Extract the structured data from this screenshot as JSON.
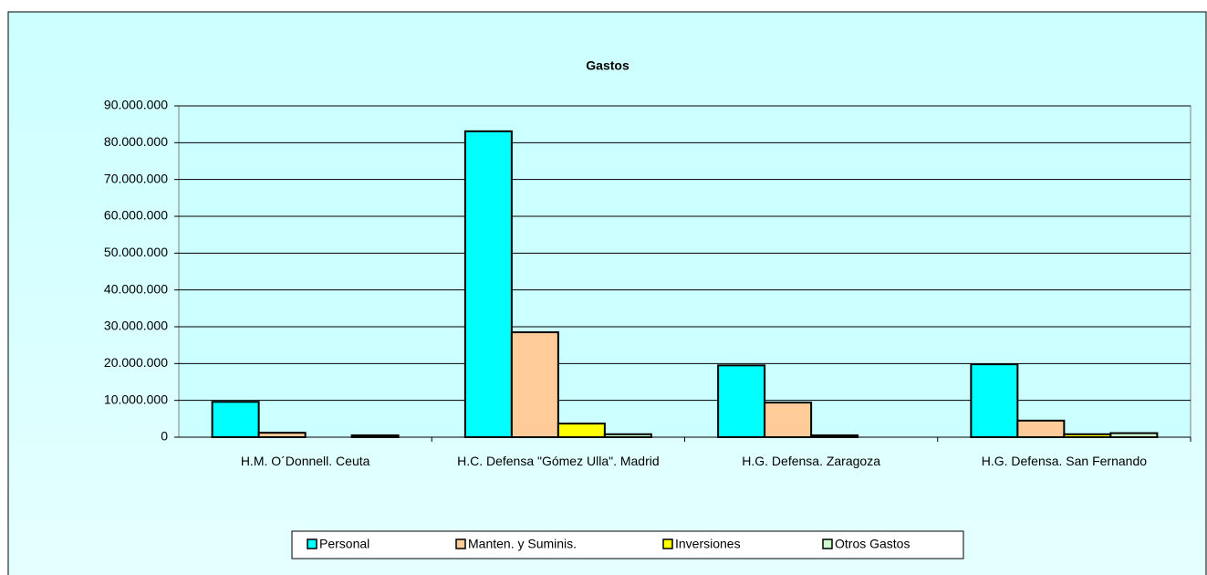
{
  "chart_data": {
    "type": "bar",
    "title": "Gastos",
    "categories": [
      "H.M. O´Donnell. Ceuta",
      "H.C. Defensa \"Gómez Ulla\". Madrid",
      "H.G. Defensa. Zaragoza",
      "H.G. Defensa. San Fernando"
    ],
    "series": [
      {
        "name": "Personal",
        "color": "#00FFFF",
        "values": [
          9600000,
          83100000,
          19500000,
          19800000
        ]
      },
      {
        "name": "Manten. y Suminis.",
        "color": "#FFCC99",
        "values": [
          1200000,
          28500000,
          9400000,
          4500000
        ]
      },
      {
        "name": "Inversiones",
        "color": "#FFFF00",
        "values": [
          0,
          3700000,
          500000,
          800000
        ]
      },
      {
        "name": "Otros Gastos",
        "color": "#CCFFCC",
        "values": [
          500000,
          800000,
          0,
          1100000
        ]
      }
    ],
    "ylim": [
      0,
      90000000
    ],
    "yticks": [
      0,
      {
        "value": 10000000,
        "label": "10.000.000"
      },
      {
        "value": 20000000,
        "label": "20.000.000"
      },
      {
        "value": 30000000,
        "label": "30.000.000"
      },
      {
        "value": 40000000,
        "label": "40.000.000"
      },
      {
        "value": 50000000,
        "label": "50.000.000"
      },
      {
        "value": 60000000,
        "label": "60.000.000"
      },
      {
        "value": 70000000,
        "label": "70.000.000"
      },
      {
        "value": 80000000,
        "label": "80.000.000"
      },
      {
        "value": 90000000,
        "label": "90.000.000"
      }
    ],
    "grid": true,
    "legend": "bottom"
  }
}
